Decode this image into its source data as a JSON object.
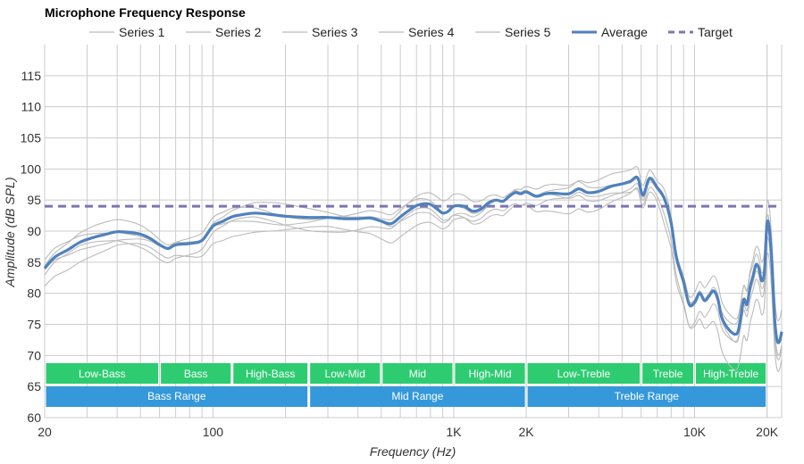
{
  "chart_data": {
    "type": "line",
    "title": "Microphone Frequency Response",
    "xlabel": "Frequency (Hz)",
    "ylabel": "Amplitude (dB SPL)",
    "x_scale": "log",
    "xlim": [
      20,
      23000
    ],
    "ylim": [
      60,
      120
    ],
    "grid": true,
    "legend_position": "top",
    "x_ticks": [
      {
        "value": 20,
        "label": "20"
      },
      {
        "value": 100,
        "label": "100"
      },
      {
        "value": 1000,
        "label": "1K"
      },
      {
        "value": 2000,
        "label": "2K"
      },
      {
        "value": 10000,
        "label": "10K"
      },
      {
        "value": 20000,
        "label": "20K"
      }
    ],
    "y_ticks": [
      60,
      65,
      70,
      75,
      80,
      85,
      90,
      95,
      100,
      105,
      110,
      115
    ],
    "target": {
      "name": "Target",
      "value": 94,
      "color": "#7b76b0"
    },
    "average": {
      "name": "Average",
      "color": "#4f81bd",
      "points": [
        [
          20,
          84.0
        ],
        [
          22,
          85.8
        ],
        [
          25,
          87.0
        ],
        [
          28,
          88.2
        ],
        [
          32,
          89.0
        ],
        [
          36,
          89.5
        ],
        [
          40,
          89.9
        ],
        [
          45,
          89.8
        ],
        [
          50,
          89.5
        ],
        [
          55,
          88.8
        ],
        [
          60,
          87.8
        ],
        [
          65,
          87.2
        ],
        [
          70,
          87.8
        ],
        [
          80,
          88.0
        ],
        [
          90,
          88.5
        ],
        [
          100,
          90.8
        ],
        [
          110,
          91.6
        ],
        [
          120,
          92.3
        ],
        [
          130,
          92.6
        ],
        [
          150,
          92.9
        ],
        [
          180,
          92.6
        ],
        [
          200,
          92.4
        ],
        [
          250,
          92.2
        ],
        [
          300,
          92.2
        ],
        [
          350,
          92.0
        ],
        [
          400,
          92.0
        ],
        [
          450,
          92.1
        ],
        [
          500,
          91.6
        ],
        [
          550,
          91.2
        ],
        [
          600,
          92.3
        ],
        [
          650,
          93.3
        ],
        [
          700,
          94.1
        ],
        [
          750,
          94.4
        ],
        [
          800,
          94.3
        ],
        [
          850,
          93.6
        ],
        [
          900,
          92.9
        ],
        [
          950,
          93.2
        ],
        [
          1000,
          94.0
        ],
        [
          1100,
          94.0
        ],
        [
          1200,
          93.2
        ],
        [
          1300,
          93.6
        ],
        [
          1400,
          94.6
        ],
        [
          1500,
          95.0
        ],
        [
          1600,
          94.8
        ],
        [
          1700,
          95.6
        ],
        [
          1800,
          96.2
        ],
        [
          1900,
          96.0
        ],
        [
          2000,
          96.3
        ],
        [
          2200,
          95.6
        ],
        [
          2400,
          96.0
        ],
        [
          2600,
          96.1
        ],
        [
          3000,
          96.0
        ],
        [
          3300,
          96.8
        ],
        [
          3600,
          96.2
        ],
        [
          4000,
          96.4
        ],
        [
          4500,
          97.2
        ],
        [
          5000,
          97.6
        ],
        [
          5400,
          98.0
        ],
        [
          5800,
          98.6
        ],
        [
          6100,
          95.8
        ],
        [
          6500,
          98.5
        ],
        [
          7000,
          97.0
        ],
        [
          7500,
          95.2
        ],
        [
          8000,
          91.2
        ],
        [
          8400,
          85.8
        ],
        [
          9000,
          81.8
        ],
        [
          9500,
          78.2
        ],
        [
          10000,
          78.5
        ],
        [
          10500,
          80.0
        ],
        [
          11000,
          78.8
        ],
        [
          11500,
          79.6
        ],
        [
          12000,
          80.4
        ],
        [
          12500,
          79.0
        ],
        [
          13000,
          76.0
        ],
        [
          14000,
          74.0
        ],
        [
          15000,
          73.5
        ],
        [
          15500,
          75.8
        ],
        [
          16000,
          79.0
        ],
        [
          16500,
          78.2
        ],
        [
          17000,
          81.0
        ],
        [
          17500,
          82.8
        ],
        [
          18000,
          84.6
        ],
        [
          18500,
          84.0
        ],
        [
          19000,
          82.0
        ],
        [
          19500,
          83.5
        ],
        [
          20000,
          91.2
        ],
        [
          20500,
          90.0
        ],
        [
          21000,
          84.0
        ],
        [
          21500,
          76.0
        ],
        [
          22000,
          72.5
        ],
        [
          22500,
          72.2
        ],
        [
          23000,
          73.8
        ]
      ]
    },
    "series": [
      {
        "name": "Series 1",
        "offset": 1.2,
        "freq": 0.0,
        "color": "#bbbbbb"
      },
      {
        "name": "Series 2",
        "offset": -1.6,
        "freq": 1.3,
        "color": "#bbbbbb"
      },
      {
        "name": "Series 3",
        "offset": 0.6,
        "freq": 2.1,
        "color": "#bbbbbb"
      },
      {
        "name": "Series 4",
        "offset": -0.7,
        "freq": 3.4,
        "color": "#bbbbbb"
      },
      {
        "name": "Series 5",
        "offset": -2.6,
        "freq": 4.6,
        "color": "#bbbbbb"
      }
    ],
    "bands": [
      {
        "label": "Low-Bass",
        "from": 20,
        "to": 60
      },
      {
        "label": "Bass",
        "from": 60,
        "to": 120
      },
      {
        "label": "High-Bass",
        "from": 120,
        "to": 250
      },
      {
        "label": "Low-Mid",
        "from": 250,
        "to": 500
      },
      {
        "label": "Mid",
        "from": 500,
        "to": 1000
      },
      {
        "label": "High-Mid",
        "from": 1000,
        "to": 2000
      },
      {
        "label": "Low-Treble",
        "from": 2000,
        "to": 6000
      },
      {
        "label": "Treble",
        "from": 6000,
        "to": 10000
      },
      {
        "label": "High-Treble",
        "from": 10000,
        "to": 20000
      }
    ],
    "ranges": [
      {
        "label": "Bass Range",
        "from": 20,
        "to": 250
      },
      {
        "label": "Mid Range",
        "from": 250,
        "to": 2000
      },
      {
        "label": "Treble Range",
        "from": 2000,
        "to": 20000
      }
    ],
    "band_color": "#2ecc71",
    "range_color": "#3498db"
  }
}
